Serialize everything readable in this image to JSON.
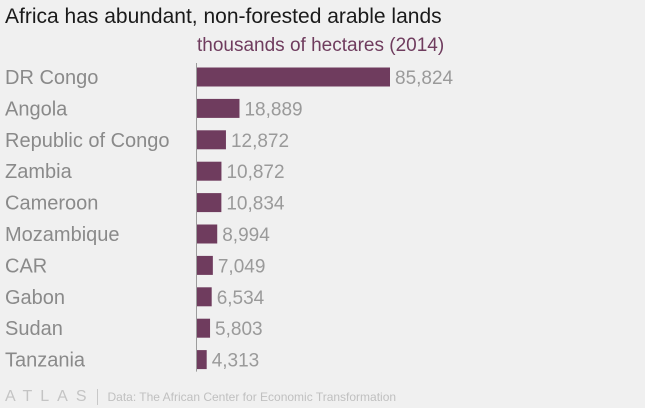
{
  "chart_data": {
    "type": "bar",
    "orientation": "horizontal",
    "title": "Africa has abundant, non-forested arable lands",
    "subtitle": "thousands of hectares (2014)",
    "categories": [
      "DR Congo",
      "Angola",
      "Republic of Congo",
      "Zambia",
      "Cameroon",
      "Mozambique",
      "CAR",
      "Gabon",
      "Sudan",
      "Tanzania"
    ],
    "values": [
      85824,
      18889,
      12872,
      10872,
      10834,
      8994,
      7049,
      6534,
      5803,
      4313
    ],
    "value_labels": [
      "85,824",
      "18,889",
      "12,872",
      "10,872",
      "10,834",
      "8,994",
      "7,049",
      "6,534",
      "5,803",
      "4,313"
    ],
    "xlim": [
      0,
      85824
    ],
    "grid": false,
    "colors": {
      "bar": "#6f3c5e",
      "label": "#8a8a8a",
      "value": "#9a9a9a",
      "axis": "#9c9c9c"
    }
  },
  "footer": {
    "logo": "ATLAS",
    "source": "Data: The African Center for Economic Transformation"
  }
}
